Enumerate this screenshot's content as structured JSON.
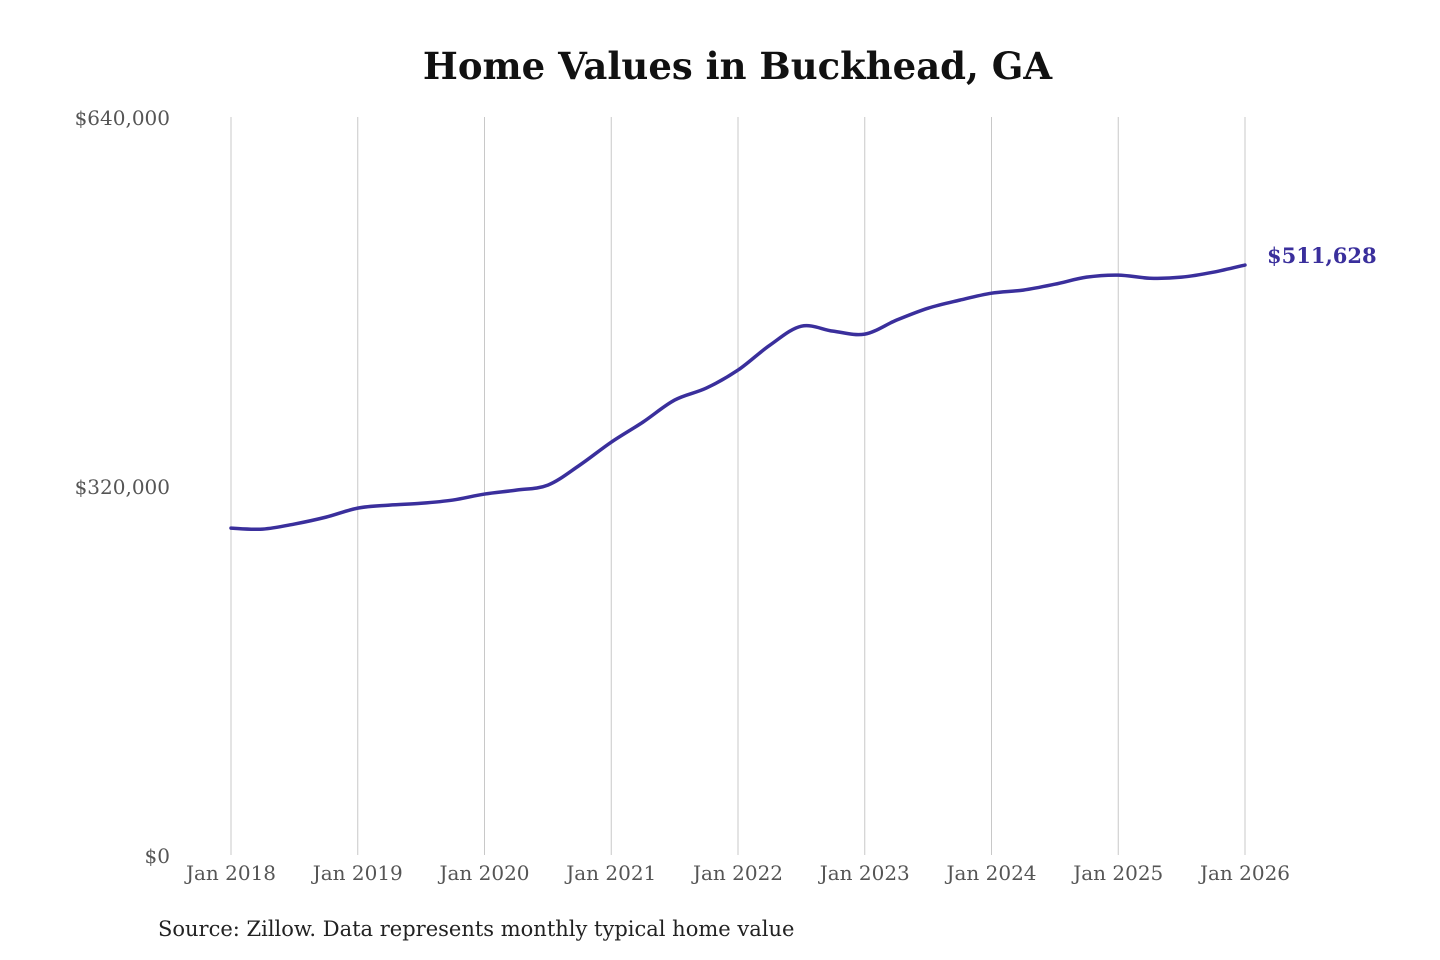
{
  "chart_data": {
    "type": "line",
    "title": "Home Values in Buckhead, GA",
    "source": "Source: Zillow. Data represents monthly typical home value",
    "xlabel": "",
    "ylabel": "",
    "ylim": [
      0,
      640000
    ],
    "y_ticks": [
      0,
      320000,
      640000
    ],
    "y_tick_labels": [
      "$0",
      "$320,000",
      "$640,000"
    ],
    "x_tick_labels": [
      "Jan 2018",
      "Jan 2019",
      "Jan 2020",
      "Jan 2021",
      "Jan 2022",
      "Jan 2023",
      "Jan 2024",
      "Jan 2025",
      "Jan 2026"
    ],
    "grid": "vertical",
    "line_color": "#3a2f9c",
    "end_label": "$511,628",
    "series": [
      {
        "x": [
          "2018-01",
          "2018-04",
          "2018-07",
          "2018-10",
          "2019-01",
          "2019-04",
          "2019-07",
          "2019-10",
          "2020-01",
          "2020-04",
          "2020-07",
          "2020-10",
          "2021-01",
          "2021-04",
          "2021-07",
          "2021-10",
          "2022-01",
          "2022-04",
          "2022-07",
          "2022-10",
          "2023-01",
          "2023-04",
          "2023-07",
          "2023-10",
          "2024-01",
          "2024-04",
          "2024-07",
          "2024-10",
          "2025-01",
          "2025-04",
          "2025-07",
          "2025-10",
          "2026-01"
        ],
        "values": [
          283500,
          282600,
          287000,
          293000,
          300800,
          303400,
          305000,
          307800,
          313000,
          316400,
          320800,
          338000,
          358000,
          375400,
          394500,
          404900,
          420500,
          442000,
          458600,
          454300,
          451700,
          463800,
          474200,
          481200,
          487200,
          489900,
          495000,
          501100,
          502900,
          500200,
          501100,
          505400,
          511628
        ]
      }
    ]
  }
}
